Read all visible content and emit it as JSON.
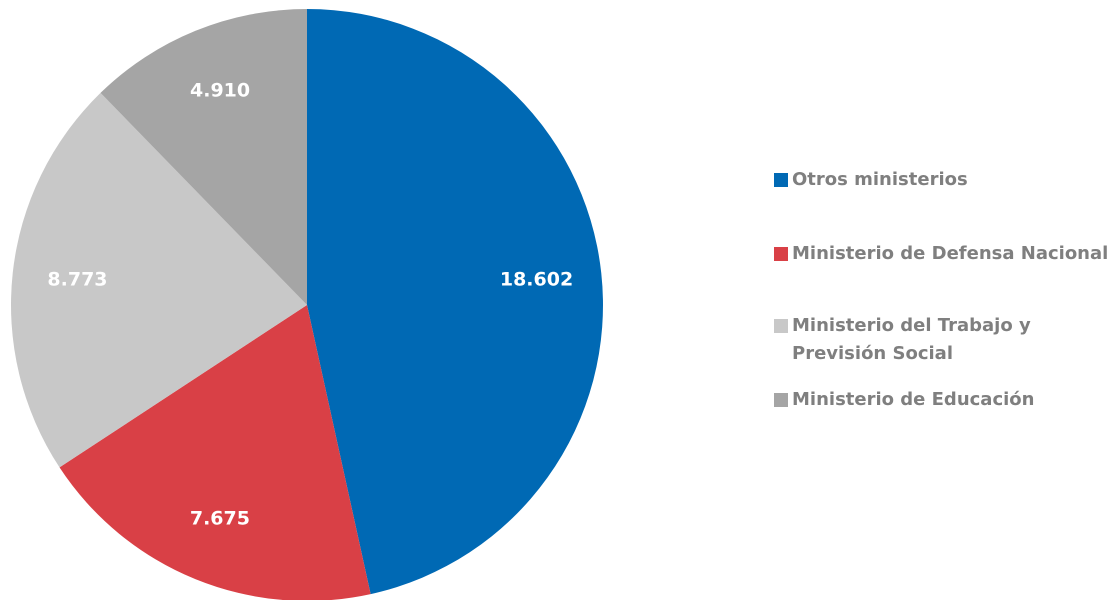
{
  "chart_data": {
    "type": "pie",
    "categories": [
      "Otros ministerios",
      "Ministerio de Defensa Nacional",
      "Ministerio del Trabajo y Previsión Social",
      "Ministerio de Educación"
    ],
    "values": [
      18602,
      7675,
      8773,
      4910
    ],
    "value_labels": [
      "18.602",
      "7.675",
      "8.773",
      "4.910"
    ],
    "colors": [
      "#0069b4",
      "#d94046",
      "#c8c8c8",
      "#a5a5a5"
    ],
    "legend": "right"
  }
}
